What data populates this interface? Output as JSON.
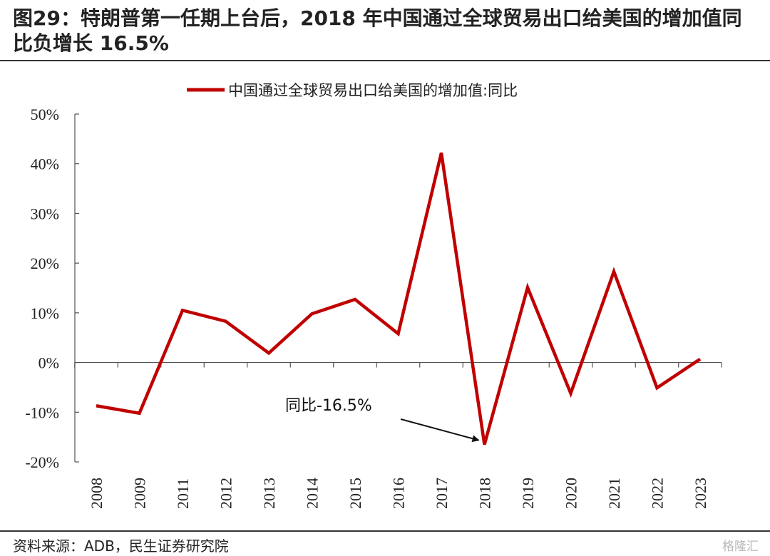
{
  "title": "图29：特朗普第一任期上台后，2018 年中国通过全球贸易出口给美国的增加值同比负增长 16.5%",
  "source": "资料来源：ADB，民生证券研究院",
  "watermark": "格隆汇",
  "chart_data": {
    "type": "line",
    "x": [
      "2008",
      "2009",
      "2011",
      "2012",
      "2013",
      "2014",
      "2015",
      "2016",
      "2017",
      "2018",
      "2019",
      "2020",
      "2021",
      "2022",
      "2023"
    ],
    "series": [
      {
        "name": "中国通过全球贸易出口给美国的增加值:同比",
        "color": "#c00000",
        "values": [
          -8.7,
          -10.2,
          10.5,
          8.3,
          1.9,
          9.8,
          12.7,
          5.8,
          42.2,
          -16.5,
          15.1,
          -6.2,
          18.3,
          -5.1,
          0.7
        ]
      }
    ],
    "ylim": [
      -20,
      50
    ],
    "yticks": [
      -20,
      -10,
      0,
      10,
      20,
      30,
      40,
      50
    ],
    "ytick_labels": [
      "-20%",
      "-10%",
      "0%",
      "10%",
      "20%",
      "30%",
      "40%",
      "50%"
    ],
    "legend_position": "top-center",
    "grid": false,
    "annotation": {
      "text": "同比-16.5%",
      "target_x": "2018",
      "target_y": -16.5
    }
  }
}
